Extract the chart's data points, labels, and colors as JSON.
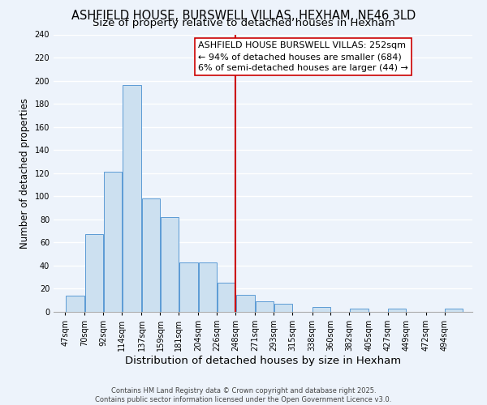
{
  "title": "ASHFIELD HOUSE, BURSWELL VILLAS, HEXHAM, NE46 3LD",
  "subtitle": "Size of property relative to detached houses in Hexham",
  "xlabel": "Distribution of detached houses by size in Hexham",
  "ylabel": "Number of detached properties",
  "bin_labels": [
    "47sqm",
    "70sqm",
    "92sqm",
    "114sqm",
    "137sqm",
    "159sqm",
    "181sqm",
    "204sqm",
    "226sqm",
    "248sqm",
    "271sqm",
    "293sqm",
    "315sqm",
    "338sqm",
    "360sqm",
    "382sqm",
    "405sqm",
    "427sqm",
    "449sqm",
    "472sqm",
    "494sqm"
  ],
  "bin_edges": [
    47,
    70,
    92,
    114,
    137,
    159,
    181,
    204,
    226,
    248,
    271,
    293,
    315,
    338,
    360,
    382,
    405,
    427,
    449,
    472,
    494
  ],
  "bar_heights": [
    14,
    67,
    121,
    196,
    98,
    82,
    43,
    43,
    25,
    15,
    9,
    7,
    0,
    4,
    0,
    3,
    0,
    3,
    0,
    0,
    3
  ],
  "bar_facecolor": "#cce0f0",
  "bar_edgecolor": "#5b9bd5",
  "vline_x": 248,
  "vline_color": "#cc0000",
  "annotation_line1": "ASHFIELD HOUSE BURSWELL VILLAS: 252sqm",
  "annotation_line2": "← 94% of detached houses are smaller (684)",
  "annotation_line3": "6% of semi-detached houses are larger (44) →",
  "annotation_box_facecolor": "#ffffff",
  "annotation_box_edgecolor": "#cc0000",
  "ylim_max": 240,
  "yticks": [
    0,
    20,
    40,
    60,
    80,
    100,
    120,
    140,
    160,
    180,
    200,
    220,
    240
  ],
  "bg_color": "#edf3fb",
  "grid_color": "#ffffff",
  "footnote": "Contains HM Land Registry data © Crown copyright and database right 2025.\nContains public sector information licensed under the Open Government Licence v3.0.",
  "title_fontsize": 10.5,
  "subtitle_fontsize": 9.5,
  "xlabel_fontsize": 9.5,
  "ylabel_fontsize": 8.5,
  "tick_fontsize": 7.0,
  "annotation_fontsize": 8.0,
  "footnote_fontsize": 6.0
}
